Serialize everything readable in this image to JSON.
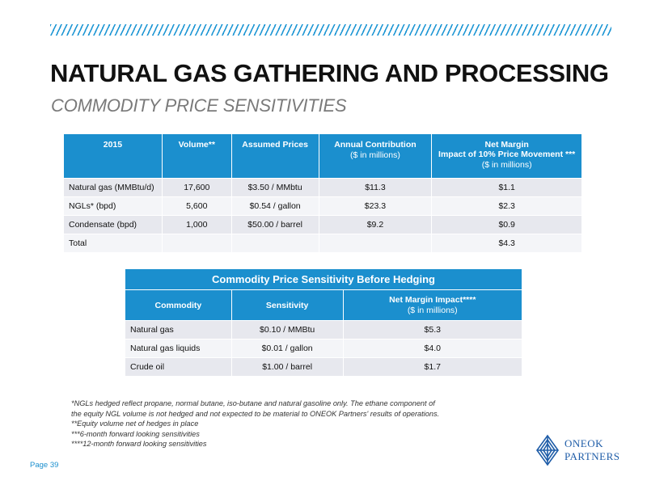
{
  "header": {
    "title": "NATURAL GAS GATHERING AND PROCESSING",
    "subtitle": "COMMODITY PRICE SENSITIVITIES"
  },
  "table1": {
    "headers": [
      {
        "label": "2015",
        "sub": ""
      },
      {
        "label": "Volume**",
        "sub": ""
      },
      {
        "label": "Assumed Prices",
        "sub": ""
      },
      {
        "label": "Annual Contribution",
        "sub": "($ in millions)"
      },
      {
        "label": "Net Margin",
        "label2": "Impact of 10% Price Movement ***",
        "sub": "($ in millions)"
      }
    ],
    "rows": [
      [
        "Natural gas (MMBtu/d)",
        "17,600",
        "$3.50 / MMbtu",
        "$11.3",
        "$1.1"
      ],
      [
        "NGLs* (bpd)",
        "5,600",
        "$0.54 / gallon",
        "$23.3",
        "$2.3"
      ],
      [
        "Condensate (bpd)",
        "1,000",
        "$50.00 / barrel",
        "$9.2",
        "$0.9"
      ],
      [
        "Total",
        "",
        "",
        "",
        "$4.3"
      ]
    ]
  },
  "table2": {
    "caption": "Commodity Price Sensitivity Before Hedging",
    "headers": [
      {
        "label": "Commodity",
        "sub": ""
      },
      {
        "label": "Sensitivity",
        "sub": ""
      },
      {
        "label": "Net Margin Impact****",
        "sub": "($ in millions)"
      }
    ],
    "rows": [
      [
        "Natural gas",
        "$0.10 / MMBtu",
        "$5.3"
      ],
      [
        "Natural gas liquids",
        "$0.01 / gallon",
        "$4.0"
      ],
      [
        "Crude oil",
        "$1.00 / barrel",
        "$1.7"
      ]
    ]
  },
  "footnotes": [
    "*NGLs hedged reflect propane, normal butane, iso-butane and natural gasoline only. The ethane component of",
    "the equity NGL volume is not hedged and not expected to be material to ONEOK Partners' results of operations.",
    "**Equity volume net of hedges in place",
    "***6-month forward looking sensitivities",
    "****12-month forward looking sensitivities"
  ],
  "page_label": "Page 39",
  "logo": {
    "line1": "ONEOK",
    "line2": "PARTNERS"
  },
  "colors": {
    "accent": "#1b8fce",
    "row_odd": "#e7e8ee",
    "row_even": "#f4f5f8",
    "logo": "#1f5da8"
  }
}
